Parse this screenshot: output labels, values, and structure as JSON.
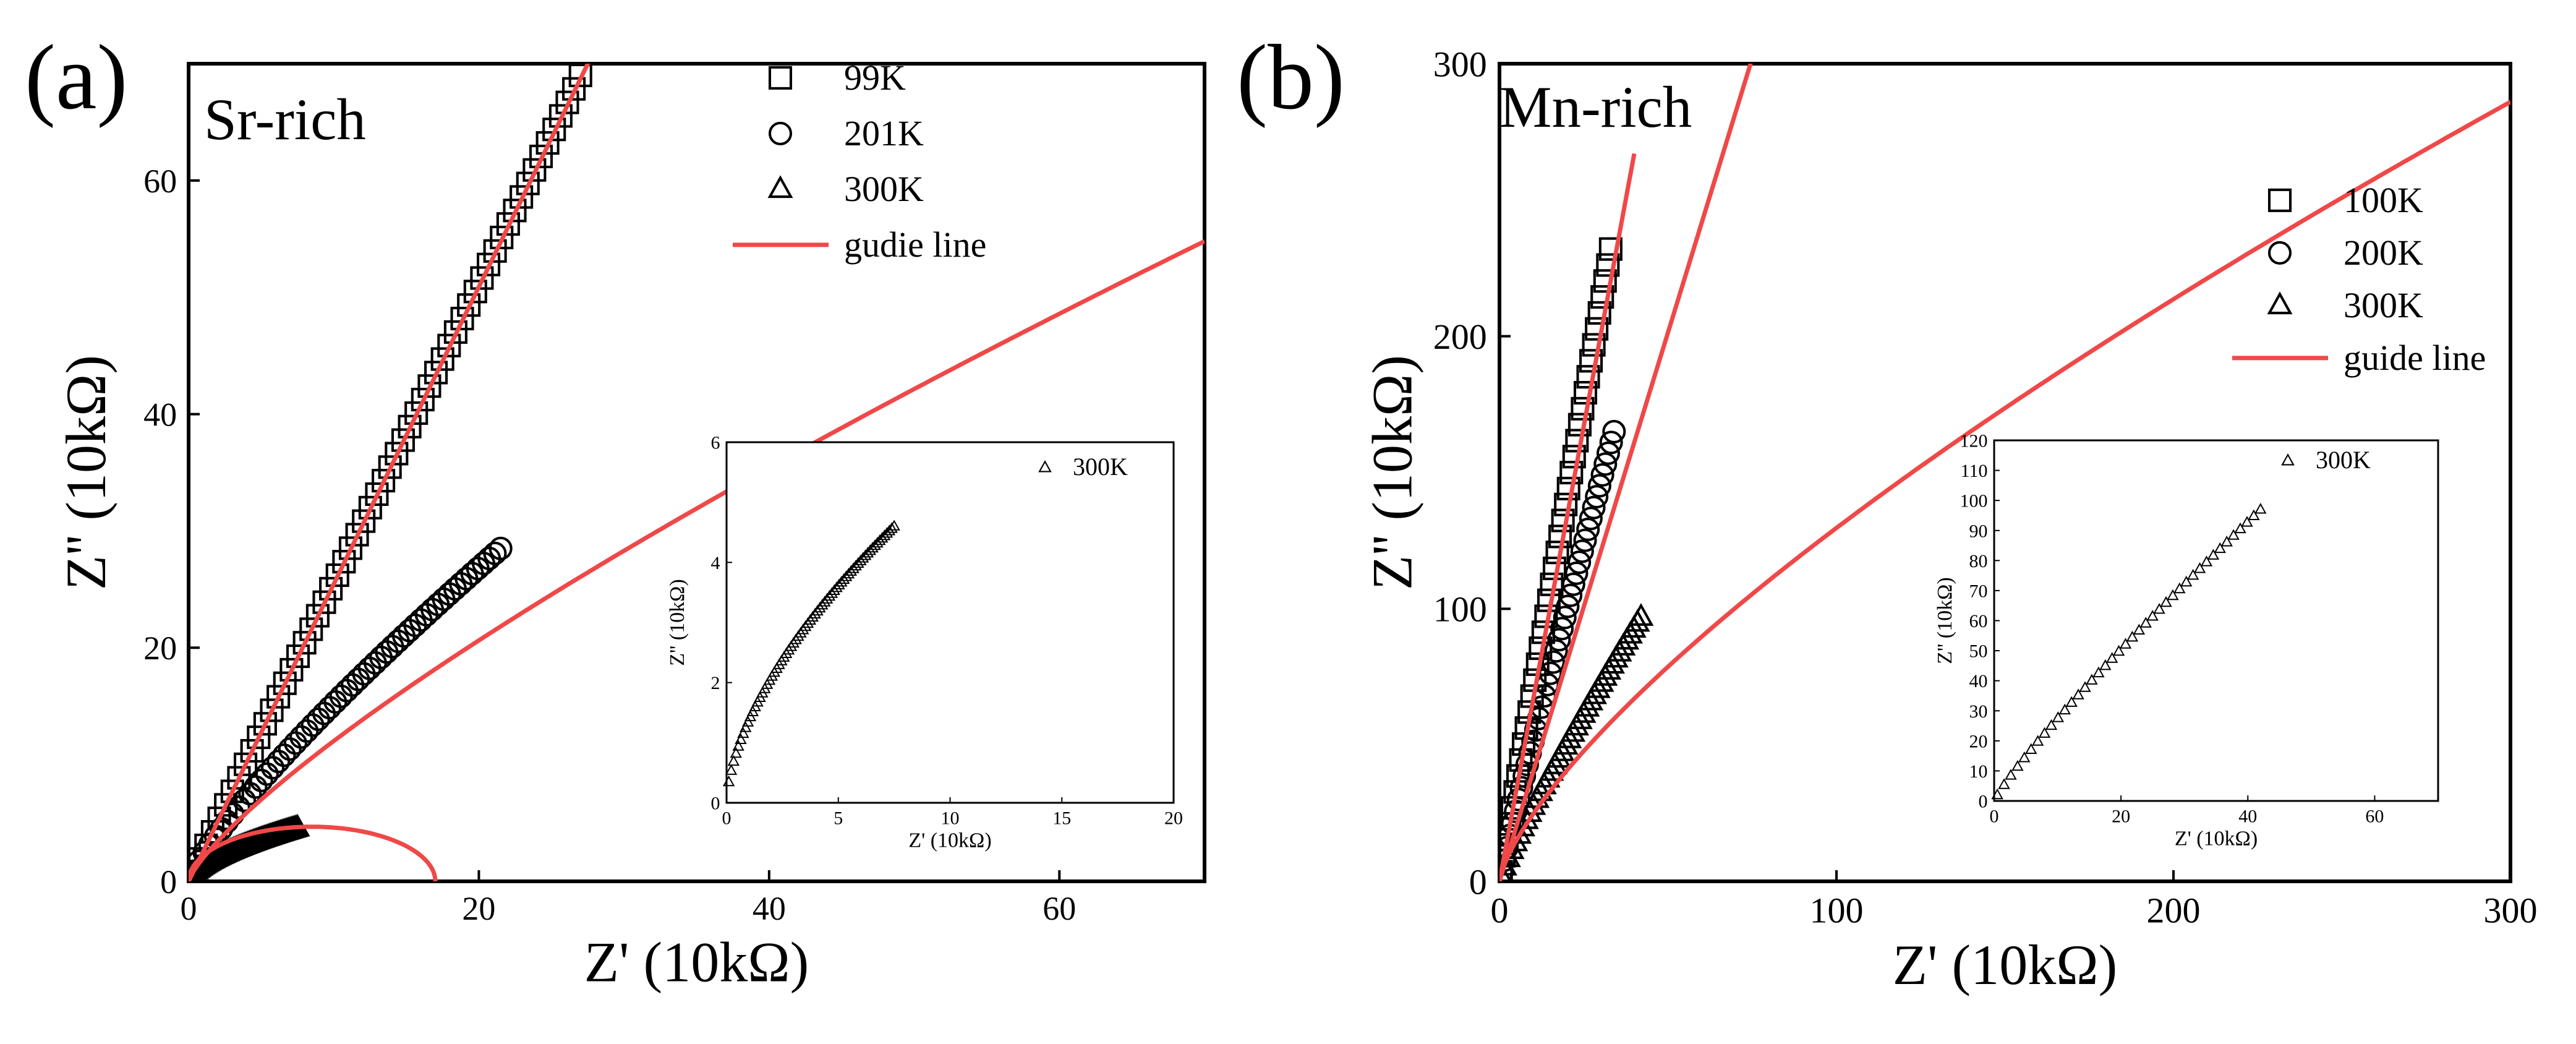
{
  "chart_data": [
    {
      "panel_label": "(a)",
      "annotation": "Sr-rich",
      "type": "scatter",
      "xlabel": "Z' (10kΩ)",
      "ylabel": "Z'' (10kΩ)",
      "xlim": [
        0,
        70
      ],
      "ylim": [
        0,
        70
      ],
      "xticks": [
        0,
        20,
        40,
        60
      ],
      "yticks": [
        0,
        20,
        40,
        60
      ],
      "legend": {
        "placement": "top-right",
        "entries": [
          "99K",
          "201K",
          "300K",
          "gudie line"
        ]
      },
      "series": [
        {
          "name": "99K",
          "marker": "square",
          "curve": "power",
          "x_range": [
            0.3,
            27
          ],
          "end": [
            27,
            69
          ],
          "exponent": 1.0,
          "count": 60
        },
        {
          "name": "201K",
          "marker": "circle",
          "curve": "power",
          "x_range": [
            0.3,
            21.5
          ],
          "end": [
            21.5,
            28.5
          ],
          "exponent": 0.82,
          "count": 55
        },
        {
          "name": "300K",
          "marker": "triangle",
          "curve": "power",
          "x_range": [
            0.1,
            7.5
          ],
          "end": [
            7.5,
            4.6
          ],
          "exponent": 0.6,
          "count": 70
        }
      ],
      "guide_lines": [
        {
          "name": "99K guide",
          "kind": "line",
          "p0": [
            0,
            0
          ],
          "p1": [
            27.9,
            71
          ]
        },
        {
          "name": "201K guide",
          "kind": "power",
          "end": [
            70,
            54.8
          ],
          "exponent": 0.78,
          "x_range": [
            0,
            70
          ]
        },
        {
          "name": "300K guide",
          "kind": "arc",
          "center": [
            8.5,
            0
          ],
          "radius": 8.5,
          "ky": 0.55
        }
      ],
      "inset": {
        "xlabel": "Z' (10kΩ)",
        "ylabel": "Z'' (10kΩ)",
        "xlim": [
          0,
          20
        ],
        "ylim": [
          0,
          6
        ],
        "xticks": [
          0,
          5,
          10,
          15,
          20
        ],
        "yticks": [
          0,
          2,
          4,
          6
        ],
        "legend": [
          "300K"
        ],
        "series": [
          {
            "name": "300K",
            "marker": "triangle",
            "curve": "power",
            "x_range": [
              0.1,
              7.5
            ],
            "end": [
              7.5,
              4.6
            ],
            "exponent": 0.6,
            "count": 70
          }
        ]
      }
    },
    {
      "panel_label": "(b)",
      "annotation": "Mn-rich",
      "type": "scatter",
      "xlabel": "Z' (10kΩ)",
      "ylabel": "Z'' (10kΩ)",
      "xlim": [
        0,
        300
      ],
      "ylim": [
        0,
        300
      ],
      "xticks": [
        0,
        100,
        200,
        300
      ],
      "yticks": [
        0,
        100,
        200,
        300
      ],
      "legend": {
        "placement": "right",
        "entries": [
          "100K",
          "200K",
          "300K",
          "guide line"
        ]
      },
      "series": [
        {
          "name": "100K",
          "marker": "square",
          "curve": "power",
          "x_range": [
            0.5,
            33
          ],
          "end": [
            33,
            232
          ],
          "exponent": 1.0,
          "count": 40
        },
        {
          "name": "200K",
          "marker": "circle",
          "curve": "power",
          "x_range": [
            0.5,
            34
          ],
          "end": [
            34,
            165
          ],
          "exponent": 0.95,
          "count": 40
        },
        {
          "name": "300K",
          "marker": "triangle",
          "curve": "power",
          "x_range": [
            0.5,
            42
          ],
          "end": [
            42,
            97
          ],
          "exponent": 0.88,
          "count": 40
        }
      ],
      "guide_lines": [
        {
          "name": "100K guide",
          "kind": "line",
          "p0": [
            0,
            0
          ],
          "p1": [
            40,
            267
          ]
        },
        {
          "name": "200K guide",
          "kind": "line",
          "p0": [
            0,
            0
          ],
          "p1": [
            75,
            302
          ]
        },
        {
          "name": "300K guide",
          "kind": "power",
          "end": [
            300,
            286
          ],
          "exponent": 0.72,
          "x_range": [
            0,
            300
          ]
        }
      ],
      "inset": {
        "xlabel": "Z' (10kΩ)",
        "ylabel": "Z'' (10kΩ)",
        "xlim": [
          0,
          70
        ],
        "ylim": [
          0,
          120
        ],
        "xticks": [
          0,
          20,
          40,
          60
        ],
        "yticks": [
          0,
          10,
          20,
          30,
          40,
          50,
          60,
          70,
          80,
          90,
          100,
          110,
          120
        ],
        "legend": [
          "300K"
        ],
        "series": [
          {
            "name": "300K",
            "marker": "triangle",
            "curve": "power",
            "x_range": [
              0.5,
              42
            ],
            "end": [
              42,
              97
            ],
            "exponent": 0.88,
            "count": 40
          }
        ]
      }
    }
  ],
  "colors": {
    "guide": "#f04848",
    "axis": "#000000",
    "marker": "#000000",
    "background": "#ffffff"
  }
}
